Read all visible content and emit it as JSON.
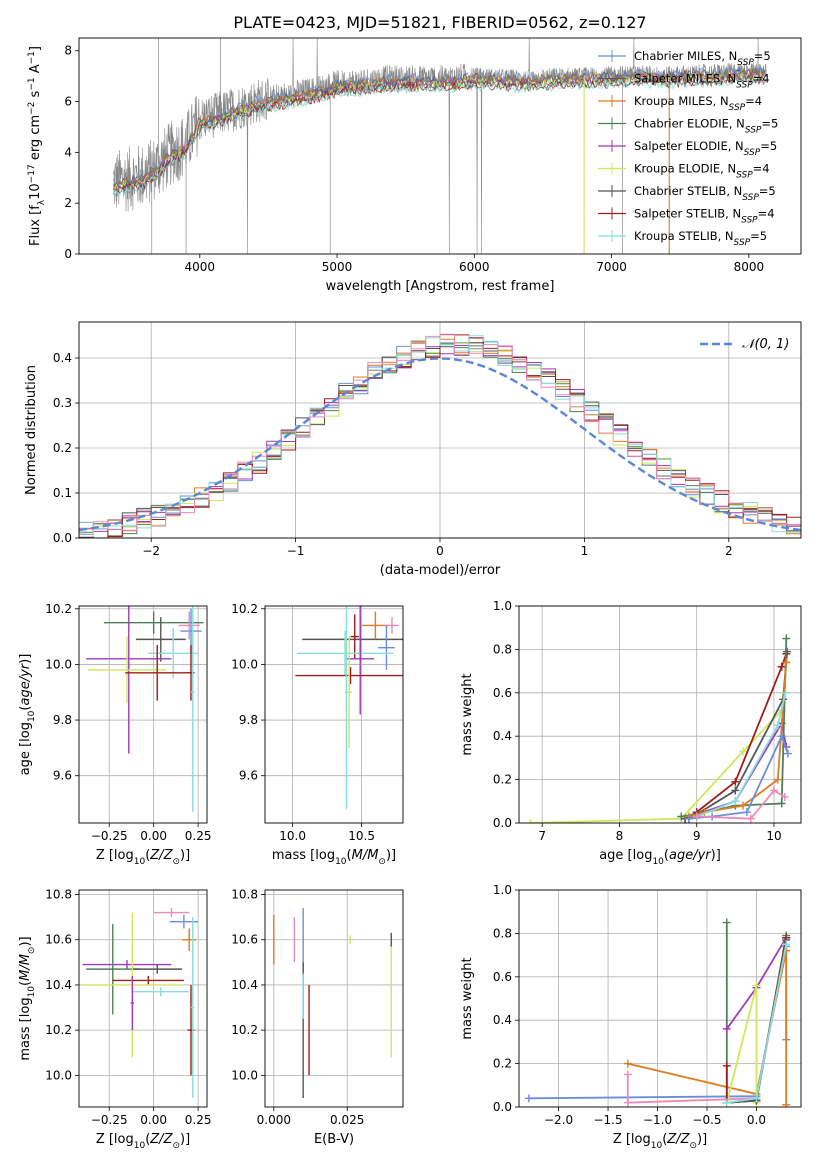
{
  "figure": {
    "title": "PLATE=0423, MJD=51821, FIBERID=0562, z=0.127"
  },
  "colors": {
    "chabrier_miles": "#6a8fd8",
    "salpeter_miles": "#5a5a5a",
    "kroupa_miles": "#e07b22",
    "chabrier_elodie": "#4f7f5a",
    "salpeter_elodie": "#a13ab8",
    "kroupa_elodie": "#cfe85a",
    "chabrier_stelib": "#555555",
    "salpeter_stelib": "#a01c1c",
    "kroupa_stelib": "#88dddd",
    "spectrum": "#888888",
    "gaussian": "#5b87d6",
    "pink": "#ee88bb"
  },
  "chart_data": [
    {
      "id": "spectrum",
      "type": "line",
      "title": "PLATE=0423, MJD=51821, FIBERID=0562, z=0.127",
      "xlabel": "wavelength [Angstrom, rest frame]",
      "ylabel": "Flux [f_λ 10^-17 erg cm^-2 s^-1 A^-1]",
      "xlim": [
        3120,
        8380
      ],
      "ylim": [
        0,
        8.5
      ],
      "xticks": [
        4000,
        5000,
        6000,
        7000,
        8000
      ],
      "yticks": [
        0,
        2,
        4,
        6,
        8
      ],
      "grid": false,
      "legend_position": "top-right",
      "series": [
        {
          "name": "Chabrier MILES, N_SSP=5",
          "color": "#6a8fd8"
        },
        {
          "name": "Salpeter MILES, N_SSP=4",
          "color": "#5a5a5a"
        },
        {
          "name": "Kroupa MILES, N_SSP=4",
          "color": "#e07b22"
        },
        {
          "name": "Chabrier ELODIE, N_SSP=5",
          "color": "#4f7f5a"
        },
        {
          "name": "Salpeter ELODIE, N_SSP=5",
          "color": "#a13ab8"
        },
        {
          "name": "Kroupa ELODIE, N_SSP=4",
          "color": "#cfe85a"
        },
        {
          "name": "Chabrier STELIB, N_SSP=5",
          "color": "#555555"
        },
        {
          "name": "Salpeter STELIB, N_SSP=4",
          "color": "#a01c1c"
        },
        {
          "name": "Kroupa STELIB, N_SSP=5",
          "color": "#88dddd"
        }
      ],
      "envelope": {
        "x": [
          3370,
          3600,
          3700,
          3800,
          3900,
          4000,
          4200,
          4400,
          4600,
          4800,
          5000,
          5200,
          5400,
          5600,
          5800,
          6000,
          6200,
          6400,
          6600,
          6800,
          7000,
          7200,
          7400,
          7600,
          7800,
          8000,
          8130
        ],
        "y": [
          2.8,
          3.1,
          3.5,
          4.0,
          4.3,
          5.3,
          5.6,
          6.0,
          6.2,
          6.4,
          6.7,
          6.8,
          6.9,
          6.9,
          6.9,
          7.0,
          6.95,
          6.9,
          7.0,
          7.0,
          7.05,
          7.1,
          7.05,
          7.1,
          7.15,
          7.2,
          7.2
        ]
      }
    },
    {
      "id": "residuals",
      "type": "line",
      "xlabel": "(data-model)/error",
      "ylabel": "Normed distribution",
      "xlim": [
        -2.5,
        2.5
      ],
      "ylim": [
        0,
        0.48
      ],
      "xticks": [
        -2,
        -1,
        0,
        1,
        2
      ],
      "yticks": [
        0.0,
        0.1,
        0.2,
        0.3,
        0.4
      ],
      "grid": true,
      "legend_position": "top-right",
      "gaussian_label": "𝒩(0, 1)"
    },
    {
      "id": "age_vs_Z",
      "type": "scatter",
      "xlabel": "Z [log10(Z/Z⊙)]",
      "ylabel": "age [log10(age/yr)]",
      "xlim": [
        -0.42,
        0.3
      ],
      "ylim": [
        9.43,
        10.21
      ],
      "xticks": [
        -0.25,
        0.0,
        0.25
      ],
      "yticks": [
        9.6,
        9.8,
        10.0,
        10.2
      ],
      "grid": true,
      "points": [
        {
          "x": 0.0,
          "y": 10.15,
          "xerr": 0.28,
          "yerr": 0.04,
          "color": "#4f7f5a"
        },
        {
          "x": 0.21,
          "y": 10.12,
          "xerr": 0.06,
          "yerr": 0.08,
          "color": "#6a8fd8"
        },
        {
          "x": 0.2,
          "y": 10.14,
          "xerr": 0.06,
          "yerr": 0.05,
          "color": "#ee88bb"
        },
        {
          "x": 0.04,
          "y": 10.09,
          "xerr": 0.14,
          "yerr": 0.08,
          "color": "#555555"
        },
        {
          "x": 0.11,
          "y": 10.04,
          "xerr": 0.14,
          "yerr": 0.09,
          "color": "#88dddd"
        },
        {
          "x": -0.14,
          "y": 10.02,
          "xerr": 0.24,
          "yerr": 0.34,
          "color": "#a13ab8"
        },
        {
          "x": -0.15,
          "y": 9.98,
          "xerr": 0.22,
          "yerr": 0.12,
          "color": "#cfe85a"
        },
        {
          "x": 0.02,
          "y": 9.97,
          "xerr": 0.18,
          "yerr": 0.1,
          "color": "#a01c1c"
        },
        {
          "x": 0.21,
          "y": 9.97,
          "xerr": 0.02,
          "yerr": 0.1,
          "color": "#a01c1c"
        },
        {
          "x": 0.22,
          "y": 9.9,
          "xerr": 0.01,
          "yerr": 0.43,
          "color": "#88dddd"
        }
      ]
    },
    {
      "id": "age_vs_mass",
      "type": "scatter",
      "xlabel": "mass [log10(M/M⊙)]",
      "ylabel": "",
      "xlim": [
        9.8,
        10.8
      ],
      "ylim": [
        9.43,
        10.21
      ],
      "xticks": [
        10.0,
        10.5
      ],
      "yticks": [
        9.6,
        9.8,
        10.0,
        10.2
      ],
      "grid": true,
      "points": [
        {
          "x": 10.49,
          "y": 10.09,
          "xerr": 0.42,
          "yerr": 0.08,
          "color": "#555555"
        },
        {
          "x": 10.6,
          "y": 10.14,
          "xerr": 0.1,
          "yerr": 0.05,
          "color": "#e07b22"
        },
        {
          "x": 10.72,
          "y": 10.14,
          "xerr": 0.05,
          "yerr": 0.03,
          "color": "#ee88bb"
        },
        {
          "x": 10.68,
          "y": 10.06,
          "xerr": 0.06,
          "yerr": 0.08,
          "color": "#6a8fd8"
        },
        {
          "x": 10.45,
          "y": 10.1,
          "xerr": 0.03,
          "yerr": 0.08,
          "color": "#a01c1c"
        },
        {
          "x": 10.38,
          "y": 10.04,
          "xerr": 0.35,
          "yerr": 0.08,
          "color": "#88dddd"
        },
        {
          "x": 10.49,
          "y": 10.02,
          "xerr": 0.1,
          "yerr": 0.2,
          "color": "#a13ab8"
        },
        {
          "x": 10.42,
          "y": 9.96,
          "xerr": 0.4,
          "yerr": 0.03,
          "color": "#a01c1c"
        },
        {
          "x": 10.41,
          "y": 9.9,
          "xerr": 0.02,
          "yerr": 0.2,
          "color": "#cfe85a"
        },
        {
          "x": 10.39,
          "y": 9.9,
          "xerr": 0.01,
          "yerr": 0.42,
          "color": "#88dddd"
        }
      ]
    },
    {
      "id": "weight_vs_age",
      "type": "line",
      "xlabel": "age [log10(age/yr)]",
      "ylabel": "mass weight",
      "xlim": [
        6.7,
        10.35
      ],
      "ylim": [
        0,
        1.0
      ],
      "xticks": [
        7,
        8,
        9,
        10
      ],
      "yticks": [
        0.0,
        0.2,
        0.4,
        0.6,
        0.8,
        1.0
      ],
      "grid": true,
      "series": [
        {
          "name": "Kroupa ELODIE",
          "color": "#cfe85a",
          "x": [
            6.85,
            8.8,
            9.6,
            10.1,
            10.16
          ],
          "y": [
            0.0,
            0.02,
            0.33,
            0.52,
            0.74
          ]
        },
        {
          "name": "Salpeter STELIB",
          "color": "#a01c1c",
          "x": [
            8.85,
            9.0,
            9.5,
            10.1,
            10.16
          ],
          "y": [
            0.02,
            0.05,
            0.19,
            0.72,
            0.78
          ]
        },
        {
          "name": "Chabrier STELIB",
          "color": "#555555",
          "x": [
            8.85,
            9.0,
            9.5,
            10.12,
            10.17
          ],
          "y": [
            0.02,
            0.04,
            0.15,
            0.57,
            0.79
          ]
        },
        {
          "name": "Salpeter ELODIE",
          "color": "#a13ab8",
          "x": [
            8.9,
            9.0,
            9.5,
            10.1,
            10.16
          ],
          "y": [
            0.02,
            0.04,
            0.1,
            0.46,
            0.35
          ]
        },
        {
          "name": "Chabrier ELODIE",
          "color": "#4f7f5a",
          "x": [
            8.8,
            9.0,
            9.5,
            10.1,
            10.16
          ],
          "y": [
            0.03,
            0.04,
            0.08,
            0.09,
            0.85
          ]
        },
        {
          "name": "Kroupa MILES",
          "color": "#e07b22",
          "x": [
            8.9,
            9.1,
            9.6,
            10.05,
            10.16
          ],
          "y": [
            0.03,
            0.05,
            0.08,
            0.2,
            0.74
          ]
        },
        {
          "name": "Chabrier MILES",
          "color": "#6a8fd8",
          "x": [
            8.9,
            9.2,
            9.65,
            10.1,
            10.18
          ],
          "y": [
            0.02,
            0.03,
            0.05,
            0.4,
            0.32
          ]
        },
        {
          "name": "Kroupa STELIB",
          "color": "#88dddd",
          "x": [
            9.0,
            9.5,
            10.05,
            10.15
          ],
          "y": [
            0.03,
            0.1,
            0.45,
            0.6
          ]
        },
        {
          "name": "pink",
          "color": "#ee88bb",
          "x": [
            9.0,
            9.7,
            10.0,
            10.14
          ],
          "y": [
            0.03,
            0.02,
            0.15,
            0.12
          ]
        }
      ]
    },
    {
      "id": "mass_vs_Z",
      "type": "scatter",
      "xlabel": "Z [log10(Z/Z⊙)]",
      "ylabel": "mass [log10(M/M⊙)]",
      "xlim": [
        -0.42,
        0.3
      ],
      "ylim": [
        9.86,
        10.82
      ],
      "xticks": [
        -0.25,
        0.0,
        0.25
      ],
      "yticks": [
        10.0,
        10.2,
        10.4,
        10.6,
        10.8
      ],
      "grid": true,
      "points": [
        {
          "x": 0.1,
          "y": 10.72,
          "xerr": 0.1,
          "yerr": 0.02,
          "color": "#ee88bb"
        },
        {
          "x": 0.17,
          "y": 10.68,
          "xerr": 0.08,
          "yerr": 0.03,
          "color": "#6a8fd8"
        },
        {
          "x": 0.2,
          "y": 10.6,
          "xerr": 0.04,
          "yerr": 0.05,
          "color": "#e07b22"
        },
        {
          "x": -0.15,
          "y": 10.49,
          "xerr": 0.25,
          "yerr": 0.02,
          "color": "#a13ab8"
        },
        {
          "x": -0.23,
          "y": 10.47,
          "xerr": 0.15,
          "yerr": 0.2,
          "color": "#4f7f5a"
        },
        {
          "x": 0.02,
          "y": 10.47,
          "xerr": 0.14,
          "yerr": 0.02,
          "color": "#555555"
        },
        {
          "x": -0.03,
          "y": 10.42,
          "xerr": 0.2,
          "yerr": 0.02,
          "color": "#a01c1c"
        },
        {
          "x": -0.12,
          "y": 10.4,
          "xerr": 0.28,
          "yerr": 0.32,
          "color": "#cfe85a"
        },
        {
          "x": 0.04,
          "y": 10.37,
          "xerr": 0.16,
          "yerr": 0.02,
          "color": "#88dddd"
        },
        {
          "x": 0.21,
          "y": 10.2,
          "xerr": 0.02,
          "yerr": 0.2,
          "color": "#a01c1c"
        },
        {
          "x": 0.22,
          "y": 10.3,
          "xerr": 0.01,
          "yerr": 0.4,
          "color": "#88dddd"
        },
        {
          "x": -0.12,
          "y": 10.32,
          "xerr": 0.01,
          "yerr": 0.12,
          "color": "#a13ab8"
        }
      ]
    },
    {
      "id": "mass_vs_ebv",
      "type": "scatter",
      "xlabel": "E(B-V)",
      "ylabel": "",
      "xlim": [
        -0.003,
        0.044
      ],
      "ylim": [
        9.86,
        10.82
      ],
      "xticks": [
        0.0,
        0.025
      ],
      "xticklabels": [
        "0.000",
        "0.025"
      ],
      "yticks": [
        10.0,
        10.2,
        10.4,
        10.6,
        10.8
      ],
      "grid": true,
      "points": [
        {
          "x": 0.0,
          "y": 10.6,
          "yerr": 0.11,
          "color": "#e07b22"
        },
        {
          "x": 0.007,
          "y": 10.6,
          "yerr": 0.1,
          "color": "#ee88bb"
        },
        {
          "x": 0.01,
          "y": 10.6,
          "yerr": 0.14,
          "color": "#6a8fd8"
        },
        {
          "x": 0.01,
          "y": 10.2,
          "yerr": 0.3,
          "color": "#555555"
        },
        {
          "x": 0.01,
          "y": 10.35,
          "yerr": 0.1,
          "color": "#88dddd"
        },
        {
          "x": 0.012,
          "y": 10.2,
          "yerr": 0.2,
          "color": "#a01c1c"
        },
        {
          "x": 0.026,
          "y": 10.6,
          "yerr": 0.02,
          "color": "#cfe85a"
        },
        {
          "x": 0.04,
          "y": 10.35,
          "yerr": 0.27,
          "color": "#cfe85a"
        },
        {
          "x": 0.04,
          "y": 10.6,
          "yerr": 0.03,
          "color": "#555555"
        }
      ]
    },
    {
      "id": "weight_vs_Z",
      "type": "line",
      "xlabel": "Z [log10(Z/Z⊙)]",
      "ylabel": "mass weight",
      "xlim": [
        -2.4,
        0.45
      ],
      "ylim": [
        0,
        1.0
      ],
      "xticks": [
        -2.0,
        -1.5,
        -1.0,
        -0.5,
        0.0
      ],
      "yticks": [
        0.0,
        0.2,
        0.4,
        0.6,
        0.8,
        1.0
      ],
      "grid": true,
      "series": [
        {
          "name": "Chabrier MILES",
          "color": "#6a8fd8",
          "x": [
            -2.3,
            0.0,
            0.3,
            0.3
          ],
          "y": [
            0.04,
            0.05,
            0.74,
            0.31
          ]
        },
        {
          "name": "Kroupa MILES",
          "color": "#e07b22",
          "x": [
            -1.3,
            0.0,
            0.3,
            0.3
          ],
          "y": [
            0.2,
            0.06,
            0.72,
            0.01
          ]
        },
        {
          "name": "pink",
          "color": "#ee88bb",
          "x": [
            -1.3,
            -1.3,
            0.0
          ],
          "y": [
            0.15,
            0.02,
            0.04
          ]
        },
        {
          "name": "Chabrier ELODIE",
          "color": "#4f7f5a",
          "x": [
            -0.3,
            -0.3,
            0.0,
            0.3
          ],
          "y": [
            0.85,
            0.02,
            0.03,
            0.79
          ]
        },
        {
          "name": "Salpeter ELODIE",
          "color": "#a13ab8",
          "x": [
            -0.3,
            0.0,
            0.3
          ],
          "y": [
            0.36,
            0.55,
            0.78
          ]
        },
        {
          "name": "Kroupa ELODIE",
          "color": "#cfe85a",
          "x": [
            -0.3,
            0.0,
            0.0
          ],
          "y": [
            0.02,
            0.56,
            0.02
          ]
        },
        {
          "name": "Salpeter STELIB",
          "color": "#a01c1c",
          "x": [
            -0.3,
            -0.3,
            0.0,
            0.3
          ],
          "y": [
            0.19,
            0.02,
            0.03,
            0.78
          ]
        },
        {
          "name": "Chabrier STELIB",
          "color": "#555555",
          "x": [
            -0.3,
            0.0,
            0.3
          ],
          "y": [
            0.02,
            0.03,
            0.77
          ]
        },
        {
          "name": "Kroupa STELIB",
          "color": "#88dddd",
          "x": [
            -0.3,
            0.0,
            0.3
          ],
          "y": [
            0.02,
            0.04,
            0.75
          ]
        }
      ]
    }
  ]
}
